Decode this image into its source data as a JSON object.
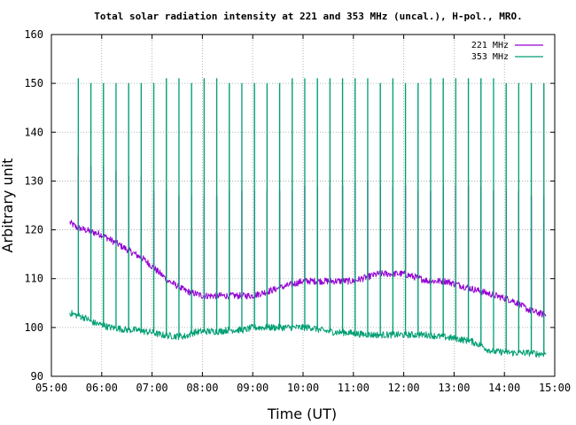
{
  "chart_data": {
    "type": "line",
    "title": "Total solar radiation intensity at 221 and 353 MHz (uncal.), H-pol., MRO.",
    "xlabel": "Time (UT)",
    "ylabel": "Arbitrary unit",
    "xlim": [
      "05:00",
      "15:00"
    ],
    "ylim": [
      90,
      160
    ],
    "x_ticks": [
      "05:00",
      "06:00",
      "07:00",
      "08:00",
      "09:00",
      "10:00",
      "11:00",
      "12:00",
      "13:00",
      "14:00",
      "15:00"
    ],
    "y_ticks": [
      90,
      100,
      110,
      120,
      130,
      140,
      150,
      160
    ],
    "grid": true,
    "legend_position": "top-right",
    "series": [
      {
        "name": "221 MHz",
        "color": "#9400d3",
        "x": [
          "05:22",
          "05:30",
          "05:40",
          "05:50",
          "06:00",
          "06:10",
          "06:20",
          "06:30",
          "06:40",
          "06:50",
          "07:00",
          "07:10",
          "07:20",
          "07:30",
          "07:40",
          "07:50",
          "08:00",
          "08:10",
          "08:20",
          "08:30",
          "08:40",
          "08:50",
          "09:00",
          "09:10",
          "09:20",
          "09:30",
          "09:40",
          "09:50",
          "10:00",
          "10:10",
          "10:20",
          "10:30",
          "10:40",
          "10:50",
          "11:00",
          "11:10",
          "11:20",
          "11:30",
          "11:40",
          "11:50",
          "12:00",
          "12:10",
          "12:20",
          "12:30",
          "12:40",
          "12:50",
          "13:00",
          "13:10",
          "13:20",
          "13:30",
          "13:40",
          "13:50",
          "14:00",
          "14:10",
          "14:20",
          "14:30",
          "14:40",
          "14:50"
        ],
        "values": [
          121.5,
          120.5,
          120,
          119.5,
          119,
          118,
          117,
          116,
          115,
          114,
          112.5,
          111,
          109.5,
          108.5,
          107.5,
          107,
          106.5,
          106.5,
          106.5,
          106.5,
          106.5,
          106.5,
          106.5,
          107,
          107.5,
          108,
          108.5,
          109,
          109.5,
          109.5,
          109.5,
          109.5,
          109.5,
          109.5,
          109.5,
          110,
          110.5,
          111,
          111,
          111,
          111,
          110.5,
          110,
          109.5,
          109.5,
          109.5,
          109,
          108.5,
          108,
          107.5,
          107,
          106.5,
          106,
          105.5,
          104.5,
          103.5,
          103,
          102.5
        ],
        "calibration_spike_peaks": [
          135,
          133,
          133,
          132,
          131,
          131,
          128,
          128,
          127,
          127,
          127,
          127,
          128,
          128,
          128,
          128,
          128,
          128,
          129,
          129,
          129,
          129,
          130,
          130,
          129,
          129,
          129,
          128,
          128,
          129,
          129,
          129,
          129,
          128,
          128,
          128,
          127,
          127,
          126
        ]
      },
      {
        "name": "353 MHz",
        "color": "#009e73",
        "x": [
          "05:22",
          "05:30",
          "05:40",
          "05:50",
          "06:00",
          "06:10",
          "06:20",
          "06:30",
          "06:40",
          "06:50",
          "07:00",
          "07:10",
          "07:20",
          "07:30",
          "07:40",
          "07:50",
          "08:00",
          "08:10",
          "08:20",
          "08:30",
          "08:40",
          "08:50",
          "09:00",
          "09:10",
          "09:20",
          "09:30",
          "09:40",
          "09:50",
          "10:00",
          "10:10",
          "10:20",
          "10:30",
          "10:40",
          "10:50",
          "11:00",
          "11:10",
          "11:20",
          "11:30",
          "11:40",
          "11:50",
          "12:00",
          "12:10",
          "12:20",
          "12:30",
          "12:40",
          "12:50",
          "13:00",
          "13:10",
          "13:20",
          "13:30",
          "13:40",
          "13:50",
          "14:00",
          "14:10",
          "14:20",
          "14:30",
          "14:40",
          "14:50"
        ],
        "values": [
          103,
          102.5,
          102,
          101,
          100.5,
          100,
          99.8,
          99.5,
          99.5,
          99.2,
          99,
          98.5,
          98.3,
          98.2,
          98.2,
          99,
          99.2,
          99.2,
          99.2,
          99.5,
          99.5,
          99.5,
          100,
          100,
          100,
          100,
          100,
          100,
          100,
          100,
          99.5,
          99.2,
          99,
          99,
          98.8,
          98.6,
          98.5,
          98.5,
          98.5,
          98.5,
          98.5,
          98.5,
          98.5,
          98.5,
          98.2,
          98,
          97.8,
          97.5,
          97.2,
          96.5,
          95.5,
          95,
          95,
          94.8,
          94.8,
          94.8,
          94.6,
          94.6
        ],
        "calibration_spike_peaks": [
          151,
          150,
          150,
          150,
          150,
          150,
          150,
          151,
          151,
          150,
          151,
          151,
          150,
          150,
          150,
          150,
          150,
          151,
          151,
          151,
          151,
          151,
          151,
          151,
          150,
          151,
          150,
          150,
          151,
          151,
          151,
          151,
          151,
          151,
          150,
          150,
          150,
          150,
          150
        ]
      }
    ],
    "calibration_times": [
      "05:32",
      "05:47",
      "06:02",
      "06:17",
      "06:32",
      "06:47",
      "07:02",
      "07:17",
      "07:32",
      "07:47",
      "08:02",
      "08:17",
      "08:32",
      "08:47",
      "09:02",
      "09:17",
      "09:32",
      "09:47",
      "10:02",
      "10:17",
      "10:32",
      "10:47",
      "11:02",
      "11:17",
      "11:32",
      "11:47",
      "12:02",
      "12:17",
      "12:32",
      "12:47",
      "13:02",
      "13:17",
      "13:32",
      "13:47",
      "14:02",
      "14:17",
      "14:32",
      "14:47",
      "14:54"
    ]
  }
}
